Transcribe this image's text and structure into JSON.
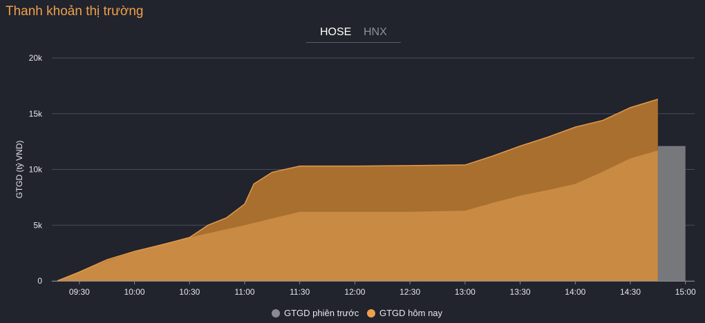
{
  "header": {
    "title": "Thanh khoản thị trường"
  },
  "tabs": [
    {
      "label": "HOSE",
      "active": true
    },
    {
      "label": "HNX",
      "active": false
    }
  ],
  "colors": {
    "background": "#21232d",
    "grid": "#4a4d58",
    "today_fill": "#c98a44",
    "today_dark": "#a96f2e",
    "today_line": "#e39a4c",
    "previous": "#77787c",
    "legend_previous": "#8a8b90",
    "legend_today": "#f0a04b"
  },
  "chart_data": {
    "type": "area",
    "ylabel": "GTGD (tỷ VND)",
    "xlabel": "",
    "ylim": [
      0,
      20000
    ],
    "yticks": [
      0,
      5000,
      10000,
      15000,
      20000
    ],
    "ytick_labels": [
      "0",
      "5k",
      "10k",
      "15k",
      "20k"
    ],
    "xlim": [
      "09:15",
      "15:05"
    ],
    "xticks": [
      "09:30",
      "10:00",
      "10:30",
      "11:00",
      "11:30",
      "12:00",
      "12:30",
      "13:00",
      "13:30",
      "14:00",
      "14:30",
      "15:00"
    ],
    "grid": true,
    "legend_position": "bottom",
    "legend": [
      "GTGD phiên trước",
      "GTGD hôm nay"
    ],
    "series": [
      {
        "name": "GTGD phiên trước",
        "style": "area",
        "points": [
          [
            "09:18",
            0
          ],
          [
            "09:30",
            800
          ],
          [
            "09:45",
            1800
          ],
          [
            "10:00",
            2600
          ],
          [
            "10:15",
            3300
          ],
          [
            "10:30",
            3900
          ],
          [
            "10:45",
            4450
          ],
          [
            "11:00",
            5000
          ],
          [
            "11:15",
            5600
          ],
          [
            "11:30",
            6200
          ],
          [
            "12:00",
            6200
          ],
          [
            "12:30",
            6200
          ],
          [
            "13:00",
            6300
          ],
          [
            "13:15",
            7000
          ],
          [
            "13:30",
            7650
          ],
          [
            "13:45",
            8150
          ],
          [
            "14:00",
            8700
          ],
          [
            "14:15",
            9800
          ],
          [
            "14:30",
            11000
          ],
          [
            "14:45",
            11700
          ]
        ]
      },
      {
        "name": "GTGD hôm nay",
        "style": "area",
        "points": [
          [
            "09:18",
            0
          ],
          [
            "09:30",
            800
          ],
          [
            "09:45",
            1900
          ],
          [
            "10:00",
            2650
          ],
          [
            "10:15",
            3250
          ],
          [
            "10:30",
            3900
          ],
          [
            "10:40",
            5000
          ],
          [
            "10:50",
            5650
          ],
          [
            "11:00",
            6900
          ],
          [
            "11:05",
            8700
          ],
          [
            "11:15",
            9750
          ],
          [
            "11:30",
            10300
          ],
          [
            "12:00",
            10300
          ],
          [
            "12:30",
            10350
          ],
          [
            "13:00",
            10400
          ],
          [
            "13:15",
            11200
          ],
          [
            "13:30",
            12100
          ],
          [
            "13:45",
            12900
          ],
          [
            "14:00",
            13800
          ],
          [
            "14:15",
            14400
          ],
          [
            "14:30",
            15550
          ],
          [
            "14:45",
            16300
          ]
        ]
      },
      {
        "name": "GTGD phiên trước",
        "style": "bar",
        "x_range": [
          "14:45",
          "15:00"
        ],
        "value": 12100
      }
    ]
  }
}
